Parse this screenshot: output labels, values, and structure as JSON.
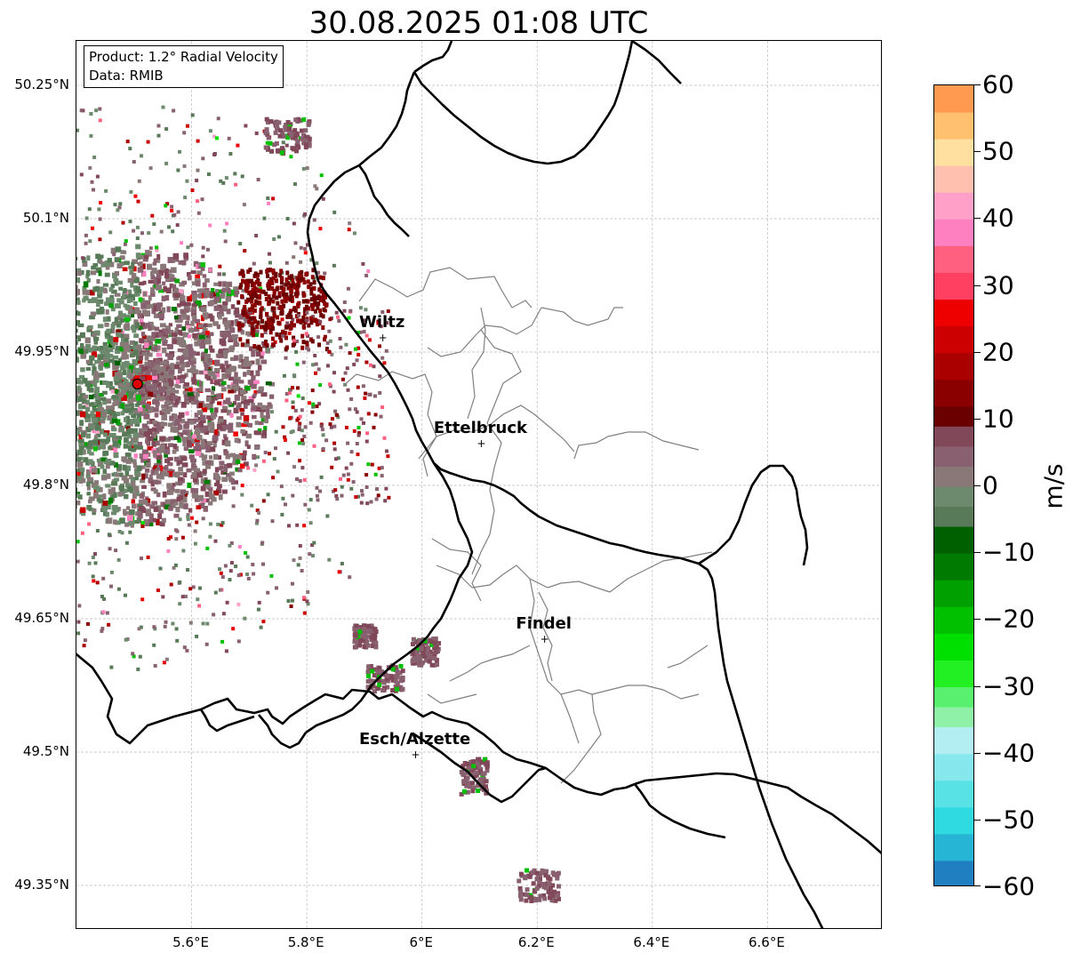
{
  "title": "30.08.2025 01:08 UTC",
  "info": {
    "product": "Product: 1.2° Radial Velocity",
    "data_source": "Data: RMIB"
  },
  "map": {
    "lon_range": [
      5.4,
      6.8
    ],
    "lat_range": [
      49.3,
      50.3
    ],
    "lat_ticks": [
      {
        "value": 50.25,
        "label": "50.25°N"
      },
      {
        "value": 50.1,
        "label": "50.1°N"
      },
      {
        "value": 49.95,
        "label": "49.95°N"
      },
      {
        "value": 49.8,
        "label": "49.8°N"
      },
      {
        "value": 49.65,
        "label": "49.65°N"
      },
      {
        "value": 49.5,
        "label": "49.5°N"
      },
      {
        "value": 49.35,
        "label": "49.35°N"
      }
    ],
    "lon_ticks": [
      {
        "value": 5.6,
        "label": "5.6°E"
      },
      {
        "value": 5.8,
        "label": "5.8°E"
      },
      {
        "value": 6.0,
        "label": "6°E"
      },
      {
        "value": 6.2,
        "label": "6.2°E"
      },
      {
        "value": 6.4,
        "label": "6.4°E"
      },
      {
        "value": 6.6,
        "label": "6.6°E"
      }
    ],
    "cities": [
      {
        "name": "Wiltz",
        "lon": 5.932,
        "lat": 49.966
      },
      {
        "name": "Ettelbruck",
        "lon": 6.103,
        "lat": 49.847
      },
      {
        "name": "Findel",
        "lon": 6.213,
        "lat": 49.627
      },
      {
        "name": "Esch/Alzette",
        "lon": 5.989,
        "lat": 49.497
      }
    ],
    "radar_site": {
      "lon": 5.506,
      "lat": 49.914
    }
  },
  "colorbar": {
    "label": "m/s",
    "min": -60,
    "max": 60,
    "ticks": [
      {
        "value": 60,
        "label": "60"
      },
      {
        "value": 50,
        "label": "50"
      },
      {
        "value": 40,
        "label": "40"
      },
      {
        "value": 30,
        "label": "30"
      },
      {
        "value": 20,
        "label": "20"
      },
      {
        "value": 10,
        "label": "10"
      },
      {
        "value": 0,
        "label": "0"
      },
      {
        "value": -10,
        "label": "−10"
      },
      {
        "value": -20,
        "label": "−20"
      },
      {
        "value": -30,
        "label": "−30"
      },
      {
        "value": -40,
        "label": "−40"
      },
      {
        "value": -50,
        "label": "−50"
      },
      {
        "value": -60,
        "label": "−60"
      }
    ],
    "stops": [
      {
        "from": -60,
        "to": -56,
        "color": "#1f7fc0"
      },
      {
        "from": -56,
        "to": -52,
        "color": "#27b5d6"
      },
      {
        "from": -52,
        "to": -48,
        "color": "#2fdbe0"
      },
      {
        "from": -48,
        "to": -44,
        "color": "#59e2e6"
      },
      {
        "from": -44,
        "to": -40,
        "color": "#86e8ec"
      },
      {
        "from": -40,
        "to": -36,
        "color": "#b3eff2"
      },
      {
        "from": -36,
        "to": -33,
        "color": "#8ff0a8"
      },
      {
        "from": -33,
        "to": -30,
        "color": "#59f070"
      },
      {
        "from": -30,
        "to": -26,
        "color": "#22f022"
      },
      {
        "from": -26,
        "to": -22,
        "color": "#00e000"
      },
      {
        "from": -22,
        "to": -18,
        "color": "#00c000"
      },
      {
        "from": -18,
        "to": -14,
        "color": "#00a000"
      },
      {
        "from": -14,
        "to": -10,
        "color": "#007a00"
      },
      {
        "from": -10,
        "to": -6,
        "color": "#006000"
      },
      {
        "from": -6,
        "to": -3,
        "color": "#587a58"
      },
      {
        "from": -3,
        "to": 0,
        "color": "#6e8a6e"
      },
      {
        "from": 0,
        "to": 3,
        "color": "#8a7878"
      },
      {
        "from": 3,
        "to": 6,
        "color": "#886070"
      },
      {
        "from": 6,
        "to": 9,
        "color": "#804858"
      },
      {
        "from": 9,
        "to": 12,
        "color": "#6a0000"
      },
      {
        "from": 12,
        "to": 16,
        "color": "#8a0000"
      },
      {
        "from": 16,
        "to": 20,
        "color": "#aa0000"
      },
      {
        "from": 20,
        "to": 24,
        "color": "#cc0000"
      },
      {
        "from": 24,
        "to": 28,
        "color": "#ee0000"
      },
      {
        "from": 28,
        "to": 32,
        "color": "#ff4060"
      },
      {
        "from": 32,
        "to": 36,
        "color": "#ff6080"
      },
      {
        "from": 36,
        "to": 40,
        "color": "#ff80c0"
      },
      {
        "from": 40,
        "to": 44,
        "color": "#ffa0c8"
      },
      {
        "from": 44,
        "to": 48,
        "color": "#ffc0b0"
      },
      {
        "from": 48,
        "to": 52,
        "color": "#ffe0a0"
      },
      {
        "from": 52,
        "to": 56,
        "color": "#ffc070"
      },
      {
        "from": 56,
        "to": 60,
        "color": "#ff9a50"
      }
    ]
  }
}
